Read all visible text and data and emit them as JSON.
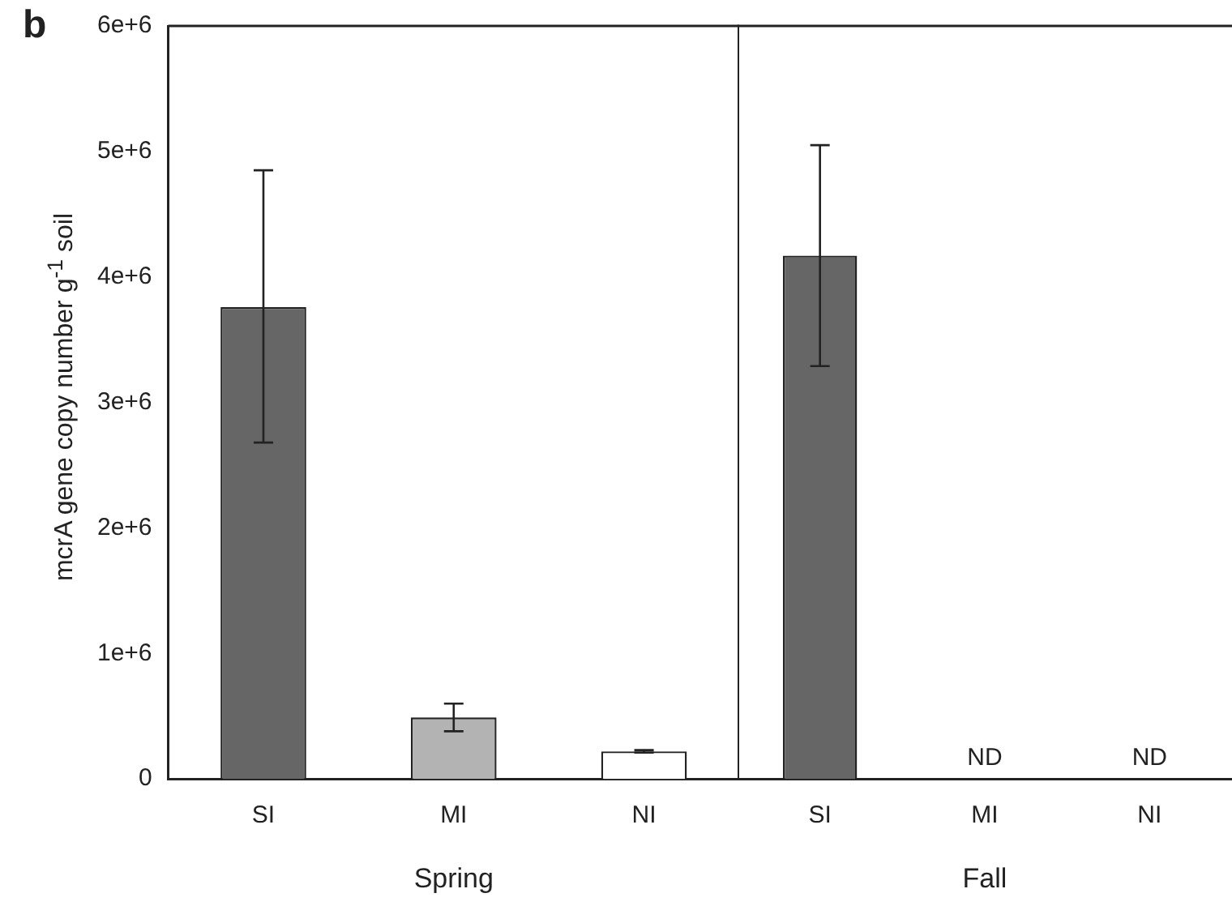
{
  "chart_data": [
    {
      "type": "bar",
      "title": "b",
      "xlabel": "Spring",
      "ylabel": "mcrA gene copy number g$^{-1}$ soil",
      "categories": [
        "SI",
        "MI",
        "NI"
      ],
      "series": [
        {
          "colors": [
            "#666666",
            "#b3b3b3",
            "#ffffff"
          ],
          "values": [
            3760000,
            490000,
            220000
          ],
          "errors": [
            [
              2680000,
              4850000
            ],
            [
              380000,
              600000
            ],
            [
              210000,
              230000
            ]
          ]
        }
      ],
      "ylim": [
        0,
        6000000
      ],
      "yticks": [
        0,
        {
          "value": 1000000,
          "label": "1e+6"
        },
        {
          "value": 2000000,
          "label": "2e+6"
        },
        {
          "value": 3000000,
          "label": "3e+6"
        },
        {
          "value": 4000000,
          "label": "4e+6"
        },
        {
          "value": 5000000,
          "label": "5e+6"
        },
        {
          "value": 6000000,
          "label": "6e+6"
        }
      ]
    },
    {
      "type": "bar",
      "xlabel": "Fall",
      "tick_labels": "x",
      "categories": [
        "SI",
        "MI",
        "NI"
      ],
      "series": [
        {
          "colors": [
            "#666666",
            "#b3b3b3",
            "#ffffff"
          ],
          "values": [
            4170000,
            null,
            null
          ],
          "errors": [
            [
              3290000,
              5050000
            ],
            null,
            null
          ],
          "value_labels": [
            null,
            "ND",
            "ND"
          ]
        }
      ],
      "ylim": [
        0,
        6000000
      ]
    }
  ]
}
